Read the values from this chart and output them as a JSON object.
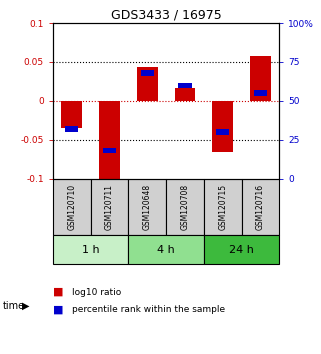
{
  "title": "GDS3433 / 16975",
  "samples": [
    "GSM120710",
    "GSM120711",
    "GSM120648",
    "GSM120708",
    "GSM120715",
    "GSM120716"
  ],
  "groups": [
    {
      "label": "1 h",
      "indices": [
        0,
        1
      ],
      "color": "#c8f0c8"
    },
    {
      "label": "4 h",
      "indices": [
        2,
        3
      ],
      "color": "#90e090"
    },
    {
      "label": "24 h",
      "indices": [
        4,
        5
      ],
      "color": "#3dba3d"
    }
  ],
  "log10_ratio": [
    -0.035,
    -0.1,
    0.043,
    0.017,
    -0.065,
    0.057
  ],
  "percentile_rank": [
    0.32,
    0.18,
    0.68,
    0.6,
    0.3,
    0.55
  ],
  "ylim": [
    -0.1,
    0.1
  ],
  "yticks_left": [
    -0.1,
    -0.05,
    0,
    0.05,
    0.1
  ],
  "ytick_labels_left": [
    "-0.1",
    "-0.05",
    "0",
    "0.05",
    "0.1"
  ],
  "yticks_right": [
    0,
    25,
    50,
    75,
    100
  ],
  "ytick_labels_right": [
    "0",
    "25",
    "50",
    "75",
    "100%"
  ],
  "bar_color_red": "#cc0000",
  "bar_color_blue": "#0000cc",
  "bar_width": 0.55,
  "blue_bar_width": 0.35,
  "blue_bar_height": 0.007,
  "legend_red": "log10 ratio",
  "legend_blue": "percentile rank within the sample",
  "sample_box_color": "#d0d0d0",
  "zero_line_color": "#cc0000",
  "dotted_line_color": "#000000",
  "title_fontsize": 9,
  "tick_fontsize": 6.5,
  "sample_fontsize": 5.5,
  "group_fontsize": 8,
  "legend_fontsize": 6.5
}
